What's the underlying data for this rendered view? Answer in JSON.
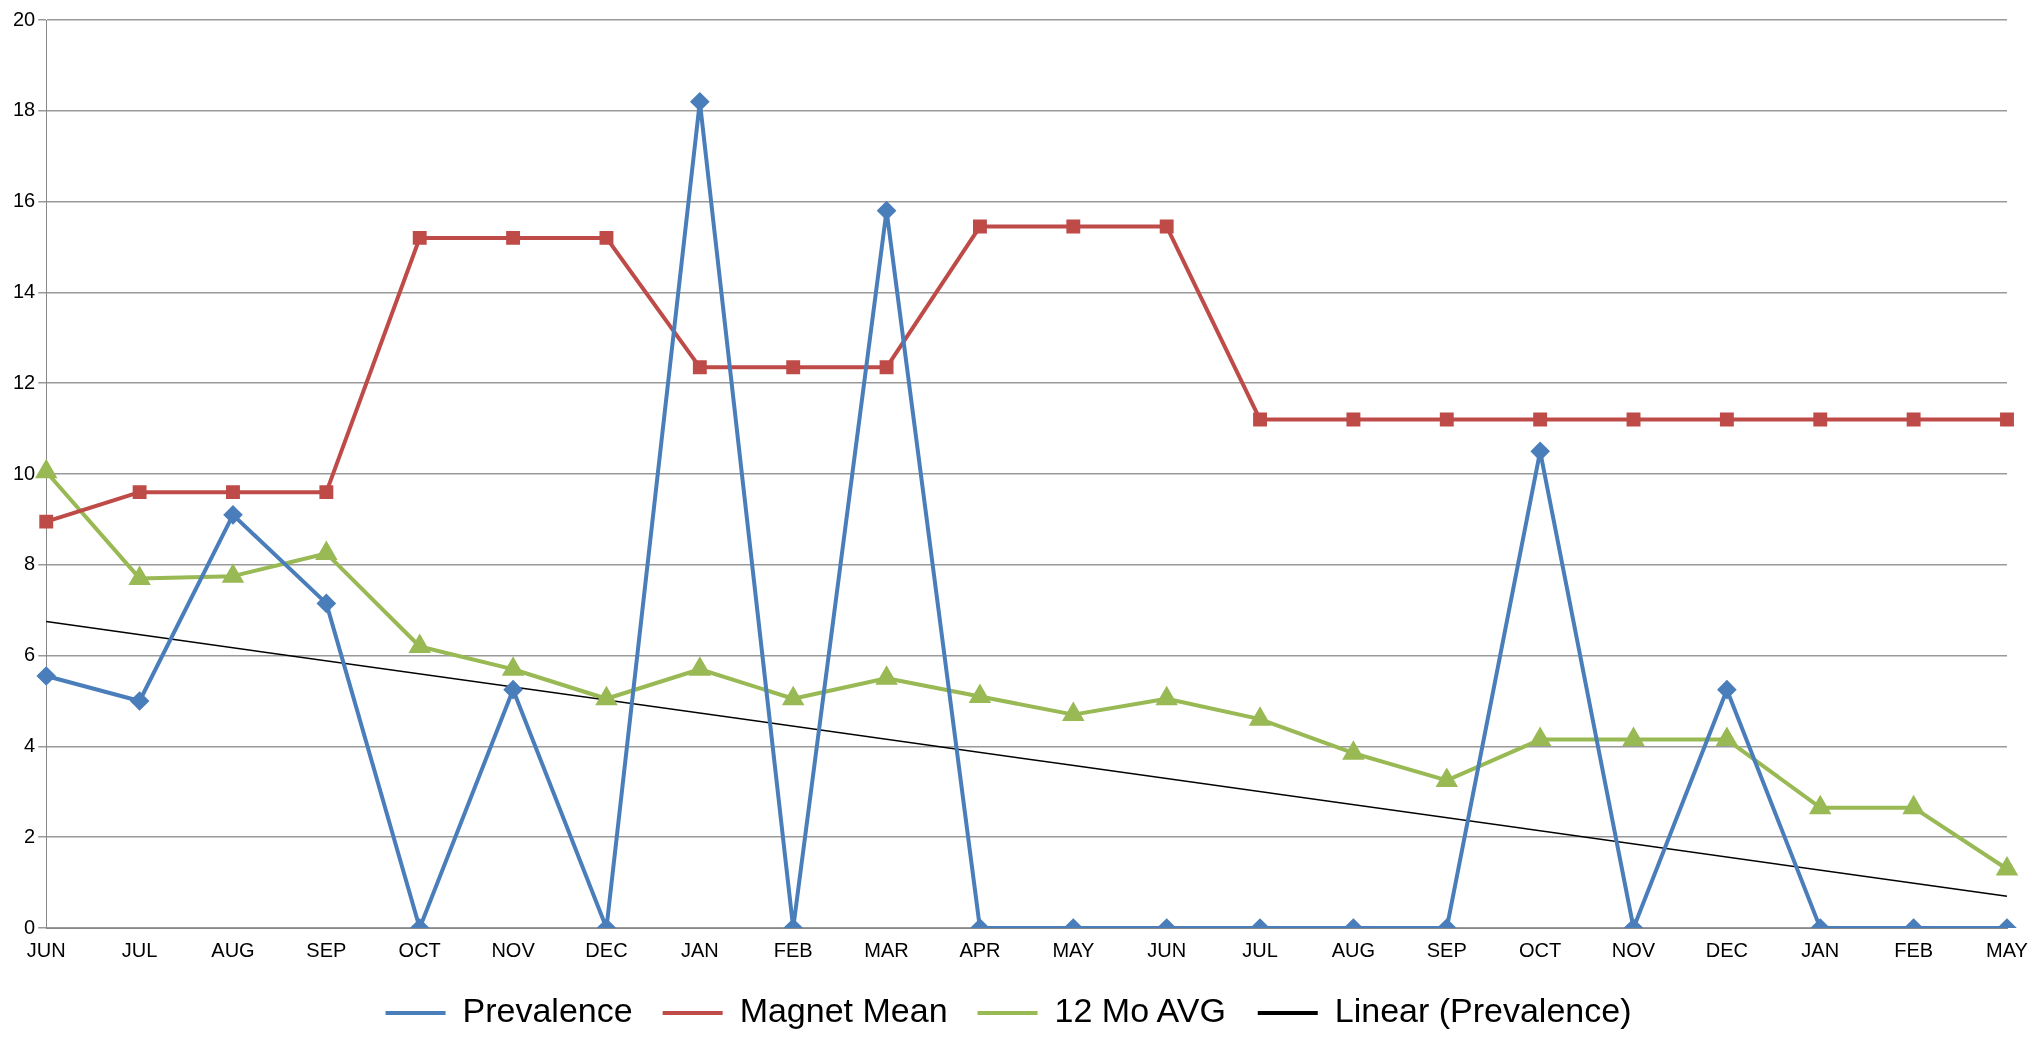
{
  "chart_data": {
    "type": "line",
    "categories": [
      "JUN",
      "JUL",
      "AUG",
      "SEP",
      "OCT",
      "NOV",
      "DEC",
      "JAN",
      "FEB",
      "MAR",
      "APR",
      "MAY",
      "JUN",
      "JUL",
      "AUG",
      "SEP",
      "OCT",
      "NOV",
      "DEC",
      "JAN",
      "FEB",
      "MAY"
    ],
    "series": [
      {
        "name": "Prevalence",
        "color": "#4a7ebb",
        "marker": "diamond",
        "values": [
          5.55,
          5.0,
          9.1,
          7.15,
          0,
          5.25,
          0,
          18.2,
          0,
          15.8,
          0,
          0,
          0,
          0,
          0,
          0,
          10.5,
          0,
          5.25,
          0,
          0,
          0
        ]
      },
      {
        "name": "Magnet Mean",
        "color": "#be4b48",
        "marker": "square",
        "values": [
          8.95,
          9.6,
          9.6,
          9.6,
          15.2,
          15.2,
          15.2,
          12.35,
          12.35,
          12.35,
          15.45,
          15.45,
          15.45,
          11.2,
          11.2,
          11.2,
          11.2,
          11.2,
          11.2,
          11.2,
          11.2,
          11.2
        ]
      },
      {
        "name": "12 Mo AVG",
        "color": "#98b954",
        "marker": "triangle",
        "values": [
          10.05,
          7.7,
          7.75,
          8.25,
          6.2,
          5.7,
          5.05,
          5.7,
          5.05,
          5.5,
          5.1,
          4.7,
          5.05,
          4.6,
          3.85,
          3.25,
          4.15,
          4.15,
          4.15,
          2.65,
          2.65,
          1.3
        ]
      },
      {
        "name": "Linear (Prevalence)",
        "color": "#000000",
        "marker": "none",
        "values": [
          6.75,
          null,
          null,
          null,
          null,
          null,
          null,
          null,
          null,
          null,
          null,
          null,
          null,
          null,
          null,
          null,
          null,
          null,
          null,
          null,
          null,
          0.7
        ]
      }
    ],
    "ylim": [
      0,
      20
    ],
    "yticks": [
      0,
      2,
      4,
      6,
      8,
      10,
      12,
      14,
      16,
      18,
      20
    ],
    "grid": "y",
    "legend": "bottom"
  }
}
